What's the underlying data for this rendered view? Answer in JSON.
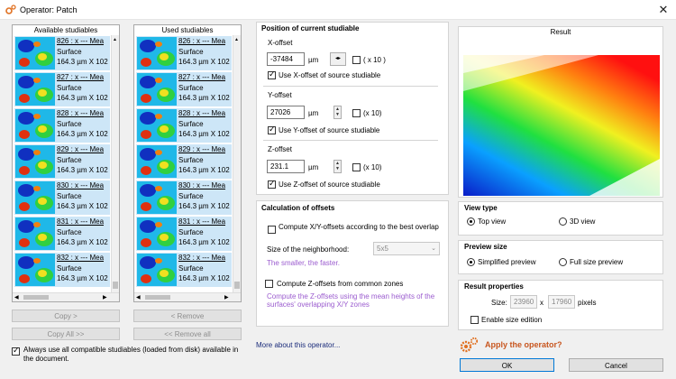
{
  "window": {
    "title": "Operator: Patch",
    "close_icon": "close-icon"
  },
  "available": {
    "header": "Available studiables",
    "items": [
      {
        "l1": "826 : x    --- Mea",
        "l2": "Surface",
        "l3": "164.3 µm X 102"
      },
      {
        "l1": "827 : x    --- Mea",
        "l2": "Surface",
        "l3": "164.3 µm X 102"
      },
      {
        "l1": "828 : x    --- Mea",
        "l2": "Surface",
        "l3": "164.3 µm X 102"
      },
      {
        "l1": "829 : x    --- Mea",
        "l2": "Surface",
        "l3": "164.3 µm X 102"
      },
      {
        "l1": "830 : x    --- Mea",
        "l2": "Surface",
        "l3": "164.3 µm X 102"
      },
      {
        "l1": "831 : x    --- Mea",
        "l2": "Surface",
        "l3": "164.3 µm X 102"
      },
      {
        "l1": "832 : x    --- Mea",
        "l2": "Surface",
        "l3": "164.3 µm X 102"
      }
    ]
  },
  "used": {
    "header": "Used studiables",
    "items": [
      {
        "l1": "826 : x    --- Mea",
        "l2": "Surface",
        "l3": "164.3 µm X 102"
      },
      {
        "l1": "827 : x    --- Mea",
        "l2": "Surface",
        "l3": "164.3 µm X 102"
      },
      {
        "l1": "828 : x    --- Mea",
        "l2": "Surface",
        "l3": "164.3 µm X 102"
      },
      {
        "l1": "829 : x    --- Mea",
        "l2": "Surface",
        "l3": "164.3 µm X 102"
      },
      {
        "l1": "830 : x    --- Mea",
        "l2": "Surface",
        "l3": "164.3 µm X 102"
      },
      {
        "l1": "831 : x    --- Mea",
        "l2": "Surface",
        "l3": "164.3 µm X 102"
      },
      {
        "l1": "832 : x    --- Mea",
        "l2": "Surface",
        "l3": "164.3 µm X 102"
      }
    ]
  },
  "buttons": {
    "copy": "Copy >",
    "copy_all": "Copy All >>",
    "remove": "< Remove",
    "remove_all": "<< Remove all",
    "ok": "OK",
    "cancel": "Cancel"
  },
  "always_use": "Always use all compatible studiables (loaded from disk) available in the document.",
  "position": {
    "title": "Position of current studiable",
    "x_label": "X-offset",
    "x_value": "-37484",
    "x_unit": "µm",
    "x_mult": "( x 10 )",
    "x_use": "Use X-offset of source studiable",
    "y_label": "Y-offset",
    "y_value": "27026",
    "y_unit": "µm",
    "y_mult": "(x 10)",
    "y_use": "Use Y-offset of source studiable",
    "z_label": "Z-offset",
    "z_value": "231.1",
    "z_unit": "µm",
    "z_mult": "(x 10)",
    "z_use": "Use Z-offset of source studiable"
  },
  "calc": {
    "title": "Calculation of offsets",
    "compute_xy": "Compute X/Y-offsets according to the best overlap",
    "neighborhood_label": "Size of the neighborhood:",
    "neighborhood_value": "5x5",
    "smaller_faster": "The smaller, the faster.",
    "compute_z": "Compute Z-offsets from common zones",
    "z_desc": "Compute the Z-offsets using the mean heights of the surfaces' overlapping X/Y zones"
  },
  "more_link": "More about this operator...",
  "result": {
    "title": "Result"
  },
  "view_type": {
    "title": "View type",
    "top": "Top view",
    "three_d": "3D view"
  },
  "preview_size": {
    "title": "Preview size",
    "simplified": "Simplified preview",
    "full": "Full size preview"
  },
  "result_props": {
    "title": "Result properties",
    "size_label": "Size:",
    "w": "23960",
    "x": "x",
    "h": "17960",
    "unit": "pixels",
    "enable": "Enable size edition"
  },
  "apply": "Apply the operator?",
  "colors": {
    "accent": "#0078d7",
    "apply": "#c8561f",
    "purple": "#9b5ccf"
  }
}
